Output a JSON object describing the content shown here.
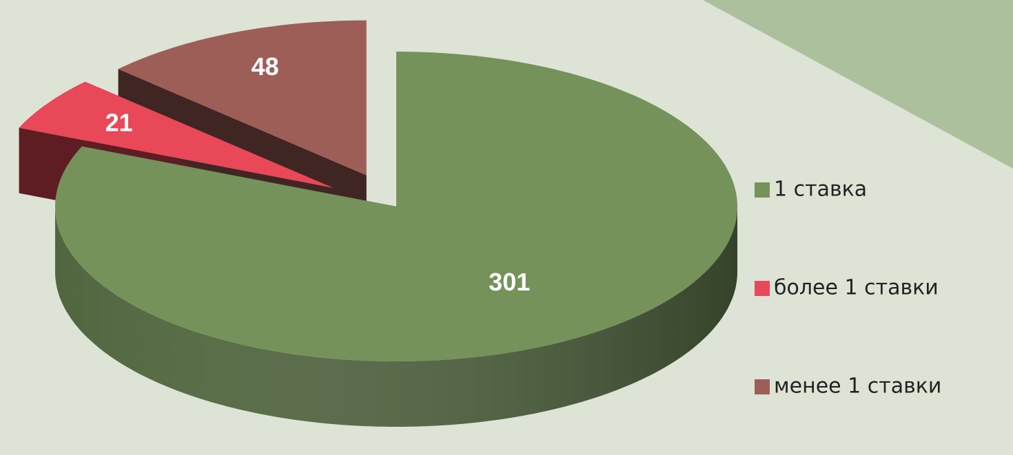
{
  "chart_data": {
    "type": "pie",
    "three_d": true,
    "categories": [
      "1 ставка",
      "более 1 ставки",
      "менее 1 ставки"
    ],
    "values": [
      301,
      21,
      48
    ],
    "colors": [
      "#74925a",
      "#e84858",
      "#9e5e58"
    ],
    "legend": "right"
  }
}
